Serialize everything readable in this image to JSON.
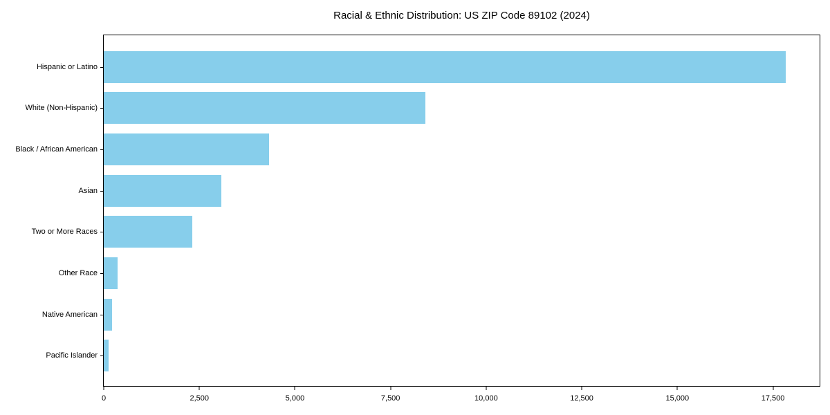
{
  "chart_data": {
    "type": "bar",
    "orientation": "horizontal",
    "title": "Racial & Ethnic Distribution: US ZIP Code 89102 (2024)",
    "categories": [
      "Hispanic or Latino",
      "White (Non-Hispanic)",
      "Black / African American",
      "Asian",
      "Two or More Races",
      "Other Race",
      "Native American",
      "Pacific Islander"
    ],
    "values": [
      17830,
      8410,
      4330,
      3070,
      2310,
      360,
      210,
      120
    ],
    "xlabel": "",
    "ylabel": "",
    "xlim": [
      0,
      18720
    ],
    "xticks": [
      0,
      2500,
      5000,
      7500,
      10000,
      12500,
      15000,
      17500
    ],
    "xtick_labels": [
      "0",
      "2,500",
      "5,000",
      "7,500",
      "10,000",
      "12,500",
      "15,000",
      "17,500"
    ],
    "bar_color": "#87CEEB",
    "spine_color": "#000000",
    "grid": false,
    "legend": null
  }
}
